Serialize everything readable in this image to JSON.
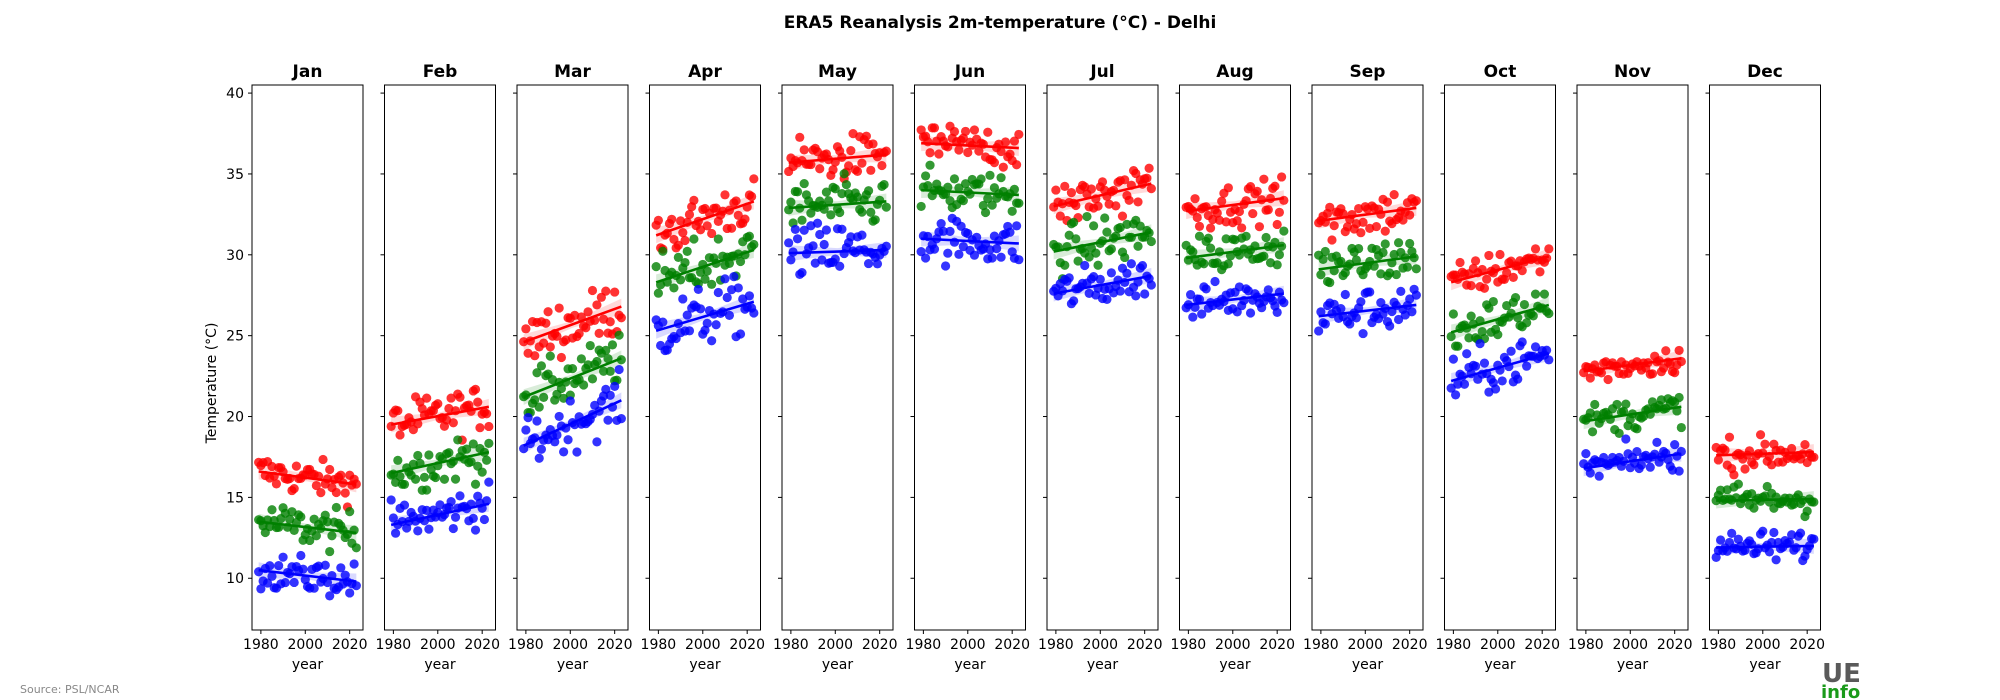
{
  "chart_data": {
    "type": "scatter",
    "title": "ERA5 Reanalysis 2m-temperature (°C) - Delhi",
    "ylabel": "Temperature (°C)",
    "xlabel": "year",
    "ylim": [
      6.8,
      40.5
    ],
    "xlim": [
      1976,
      2026
    ],
    "yticks": [
      10,
      15,
      20,
      25,
      30,
      35,
      40
    ],
    "xticks": [
      1980,
      2000,
      2020
    ],
    "panels": [
      {
        "month": "Jan",
        "series": [
          {
            "color": "#ff0000",
            "start": 16.6,
            "end": 15.8,
            "spread": 0.8
          },
          {
            "color": "#008000",
            "start": 13.5,
            "end": 12.8,
            "spread": 0.9
          },
          {
            "color": "#0000ff",
            "start": 10.5,
            "end": 9.8,
            "spread": 0.8
          }
        ]
      },
      {
        "month": "Feb",
        "series": [
          {
            "color": "#ff0000",
            "start": 19.5,
            "end": 20.6,
            "spread": 1.0
          },
          {
            "color": "#008000",
            "start": 16.5,
            "end": 17.8,
            "spread": 1.0
          },
          {
            "color": "#0000ff",
            "start": 13.3,
            "end": 14.6,
            "spread": 0.9
          }
        ]
      },
      {
        "month": "Mar",
        "series": [
          {
            "color": "#ff0000",
            "start": 24.6,
            "end": 26.8,
            "spread": 1.2
          },
          {
            "color": "#008000",
            "start": 21.2,
            "end": 23.6,
            "spread": 1.1
          },
          {
            "color": "#0000ff",
            "start": 18.2,
            "end": 21.0,
            "spread": 1.1
          }
        ]
      },
      {
        "month": "Apr",
        "series": [
          {
            "color": "#ff0000",
            "start": 31.2,
            "end": 33.3,
            "spread": 1.1
          },
          {
            "color": "#008000",
            "start": 28.3,
            "end": 30.3,
            "spread": 1.2
          },
          {
            "color": "#0000ff",
            "start": 25.3,
            "end": 27.1,
            "spread": 1.3
          }
        ]
      },
      {
        "month": "May",
        "series": [
          {
            "color": "#ff0000",
            "start": 35.7,
            "end": 36.2,
            "spread": 1.0
          },
          {
            "color": "#008000",
            "start": 32.9,
            "end": 33.3,
            "spread": 1.1
          },
          {
            "color": "#0000ff",
            "start": 30.1,
            "end": 30.3,
            "spread": 1.3
          }
        ]
      },
      {
        "month": "Jun",
        "series": [
          {
            "color": "#ff0000",
            "start": 36.9,
            "end": 36.6,
            "spread": 0.9
          },
          {
            "color": "#008000",
            "start": 34.0,
            "end": 33.7,
            "spread": 0.9
          },
          {
            "color": "#0000ff",
            "start": 31.0,
            "end": 30.7,
            "spread": 1.0
          }
        ]
      },
      {
        "month": "Jul",
        "series": [
          {
            "color": "#ff0000",
            "start": 33.0,
            "end": 34.4,
            "spread": 1.1
          },
          {
            "color": "#008000",
            "start": 30.2,
            "end": 31.4,
            "spread": 1.1
          },
          {
            "color": "#0000ff",
            "start": 27.6,
            "end": 28.7,
            "spread": 0.9
          }
        ]
      },
      {
        "month": "Aug",
        "series": [
          {
            "color": "#ff0000",
            "start": 32.7,
            "end": 33.5,
            "spread": 0.9
          },
          {
            "color": "#008000",
            "start": 29.8,
            "end": 30.6,
            "spread": 0.9
          },
          {
            "color": "#0000ff",
            "start": 26.9,
            "end": 27.6,
            "spread": 0.8
          }
        ]
      },
      {
        "month": "Sep",
        "series": [
          {
            "color": "#ff0000",
            "start": 32.1,
            "end": 32.9,
            "spread": 1.0
          },
          {
            "color": "#008000",
            "start": 29.1,
            "end": 29.9,
            "spread": 1.0
          },
          {
            "color": "#0000ff",
            "start": 26.2,
            "end": 26.9,
            "spread": 1.0
          }
        ]
      },
      {
        "month": "Oct",
        "series": [
          {
            "color": "#ff0000",
            "start": 28.3,
            "end": 29.9,
            "spread": 0.8
          },
          {
            "color": "#008000",
            "start": 25.2,
            "end": 26.9,
            "spread": 1.0
          },
          {
            "color": "#0000ff",
            "start": 22.2,
            "end": 23.9,
            "spread": 1.0
          }
        ]
      },
      {
        "month": "Nov",
        "series": [
          {
            "color": "#ff0000",
            "start": 22.8,
            "end": 23.6,
            "spread": 0.6
          },
          {
            "color": "#008000",
            "start": 19.7,
            "end": 20.6,
            "spread": 0.7
          },
          {
            "color": "#0000ff",
            "start": 16.8,
            "end": 17.7,
            "spread": 0.7
          }
        ]
      },
      {
        "month": "Dec",
        "series": [
          {
            "color": "#ff0000",
            "start": 17.6,
            "end": 17.8,
            "spread": 0.7
          },
          {
            "color": "#008000",
            "start": 14.8,
            "end": 14.9,
            "spread": 0.7
          },
          {
            "color": "#0000ff",
            "start": 11.9,
            "end": 12.0,
            "spread": 0.7
          }
        ]
      }
    ],
    "years": [
      1979,
      2023
    ]
  },
  "footer": {
    "source": "Source: PSL/NCAR",
    "logo_top": "UE",
    "logo_bottom": "info"
  }
}
